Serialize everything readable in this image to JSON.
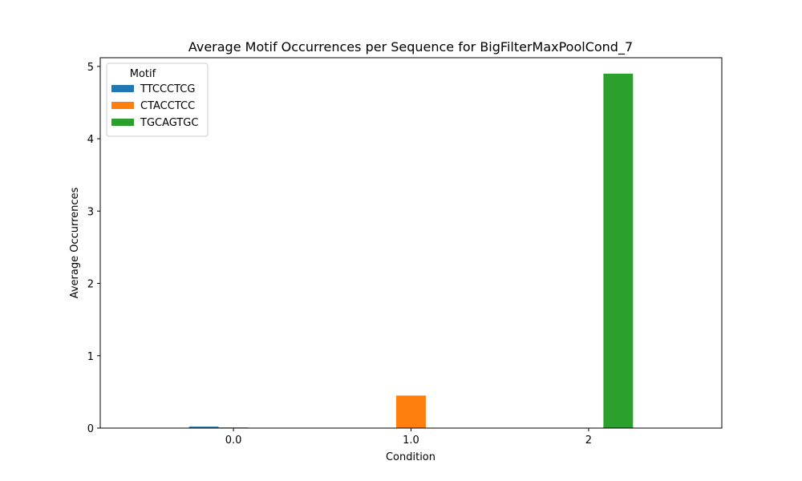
{
  "chart_data": {
    "type": "bar",
    "title": "Average Motif Occurrences per Sequence for BigFilterMaxPoolCond_7",
    "xlabel": "Condition",
    "ylabel": "Average Occurrences",
    "categories": [
      "0.0",
      "1.0",
      "2"
    ],
    "ylim": [
      0,
      5.12
    ],
    "yticks": [
      0,
      1,
      2,
      3,
      4,
      5
    ],
    "legend_title": "Motif",
    "legend_position": "top-left",
    "grid": false,
    "series": [
      {
        "name": "TTCCCTCG",
        "color": "#1f77b4",
        "values": [
          0.02,
          0,
          0
        ]
      },
      {
        "name": "CTACCTCC",
        "color": "#ff7f0e",
        "values": [
          0.01,
          0.45,
          0
        ]
      },
      {
        "name": "TGCAGTGC",
        "color": "#2ca02c",
        "values": [
          0,
          0,
          4.9
        ]
      }
    ]
  }
}
